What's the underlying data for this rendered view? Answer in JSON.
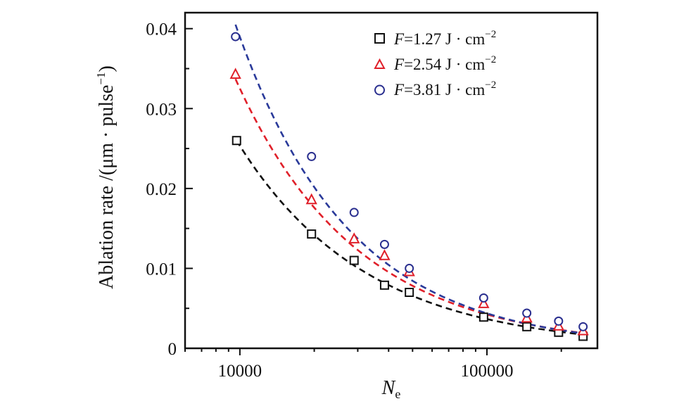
{
  "chart_data": {
    "type": "scatter",
    "title": "",
    "x_scale": "log",
    "xlim": [
      6000,
      280000
    ],
    "ylim": [
      0,
      0.042
    ],
    "xlabel": {
      "main": "N",
      "sub": "e"
    },
    "ylabel": {
      "main": "Ablation rate /(μm · pulse",
      "sup": "−1",
      "end": ")"
    },
    "x_ticks": [
      {
        "value": 10000,
        "label": "10000"
      },
      {
        "value": 100000,
        "label": "100000"
      }
    ],
    "y_ticks": [
      {
        "value": 0,
        "label": "0"
      },
      {
        "value": 0.01,
        "label": "0.01"
      },
      {
        "value": 0.02,
        "label": "0.02"
      },
      {
        "value": 0.03,
        "label": "0.03"
      },
      {
        "value": 0.04,
        "label": "0.04"
      }
    ],
    "legend_position": "top-right",
    "series": [
      {
        "name": "F=1.27 J · cm−2",
        "label_var": "F",
        "label_rest": "=1.27 J · cm",
        "label_sup": "−2",
        "marker": "square",
        "color": "#111111",
        "fit_color": "#111111",
        "x": [
          9700,
          19500,
          29000,
          38500,
          48500,
          97000,
          145000,
          195000,
          245000
        ],
        "y": [
          0.026,
          0.0143,
          0.011,
          0.0079,
          0.007,
          0.0039,
          0.0027,
          0.002,
          0.0015
        ],
        "fit": {
          "a": 0.026,
          "x0": 9700,
          "exp": -0.84
        }
      },
      {
        "name": "F=2.54 J · cm−2",
        "label_var": "F",
        "label_rest": "=2.54 J · cm",
        "label_sup": "−2",
        "marker": "triangle",
        "color": "#e0202a",
        "fit_color": "#e0202a",
        "x": [
          9600,
          19500,
          29000,
          38500,
          48500,
          97000,
          145000,
          195000,
          245000
        ],
        "y": [
          0.0343,
          0.0186,
          0.0137,
          0.0116,
          0.0096,
          0.0056,
          0.0038,
          0.0028,
          0.0022
        ],
        "fit": {
          "a": 0.0337,
          "x0": 9600,
          "exp": -0.885
        }
      },
      {
        "name": "F=3.81 J · cm−2",
        "label_var": "F",
        "label_rest": "=3.81 J · cm",
        "label_sup": "−2",
        "marker": "circle",
        "color": "#2a2f8f",
        "fit_color": "#2a3a9a",
        "x": [
          9600,
          19500,
          29000,
          38500,
          48500,
          97000,
          145000,
          195000,
          245000
        ],
        "y": [
          0.039,
          0.024,
          0.017,
          0.013,
          0.01,
          0.0063,
          0.0044,
          0.0034,
          0.0027
        ],
        "fit": {
          "a": 0.0405,
          "x0": 9600,
          "exp": -0.95
        }
      }
    ]
  }
}
